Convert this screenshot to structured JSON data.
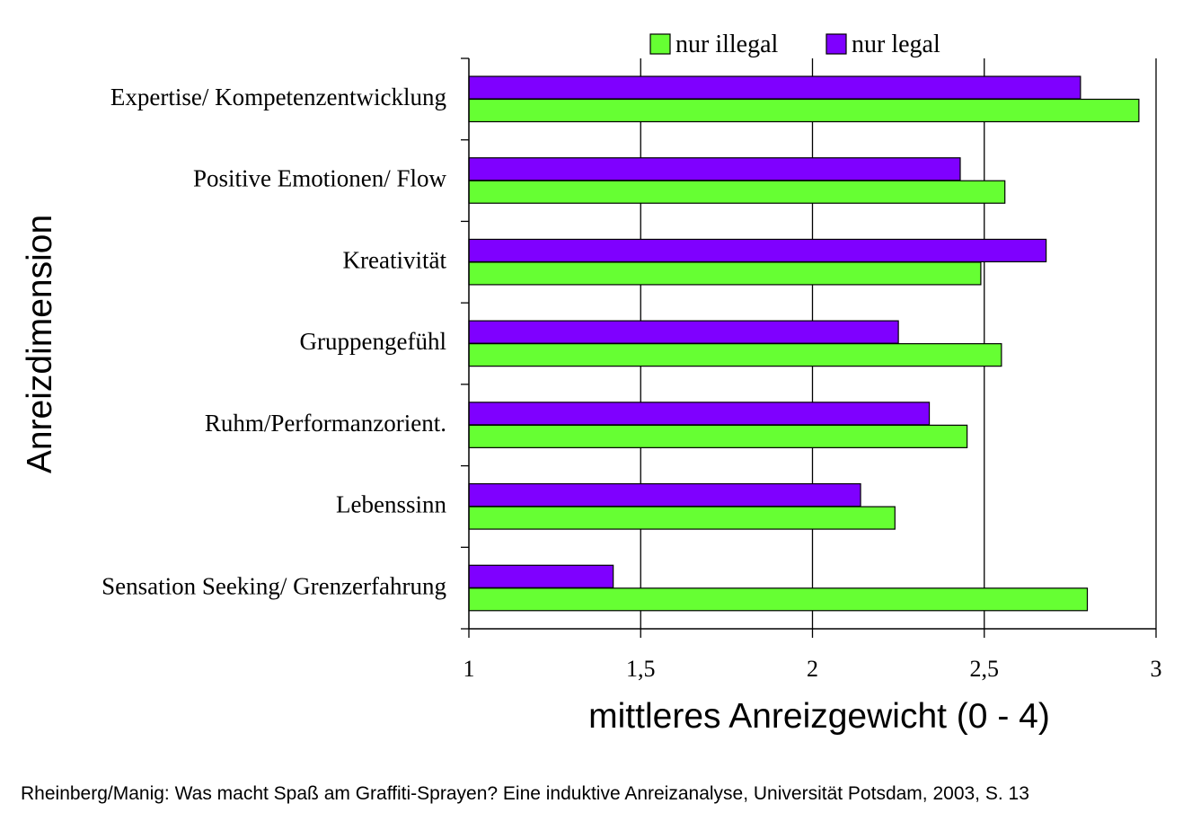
{
  "chart_data": {
    "type": "bar",
    "orientation": "horizontal",
    "categories": [
      "Expertise/ Kompetenzentwicklung",
      "Positive Emotionen/ Flow",
      "Kreativität",
      "Gruppengefühl",
      "Ruhm/Performanzorient.",
      "Lebenssinn",
      "Sensation Seeking/ Grenzerfahrung"
    ],
    "series": [
      {
        "name": "nur legal",
        "color": "#7f00ff",
        "values": [
          2.78,
          2.43,
          2.68,
          2.25,
          2.34,
          2.14,
          1.42
        ]
      },
      {
        "name": "nur illegal",
        "color": "#66ff33",
        "values": [
          2.95,
          2.56,
          2.49,
          2.55,
          2.45,
          2.24,
          2.8
        ]
      }
    ],
    "legend_order": [
      "nur illegal",
      "nur legal"
    ],
    "xlim": [
      1,
      3
    ],
    "xticks": [
      1,
      1.5,
      2,
      2.5,
      3
    ],
    "xtick_labels": [
      "1",
      "1,5",
      "2",
      "2,5",
      "3"
    ],
    "xlabel": "mittleres Anreizgewicht (0 - 4)",
    "ylabel": "Anreizdimension",
    "grid": "vertical",
    "legend_position": "top"
  },
  "source_note": "Rheinberg/Manig: Was macht Spaß am Graffiti-Sprayen? Eine induktive Anreizanalyse, Universität Potsdam, 2003, S. 13"
}
